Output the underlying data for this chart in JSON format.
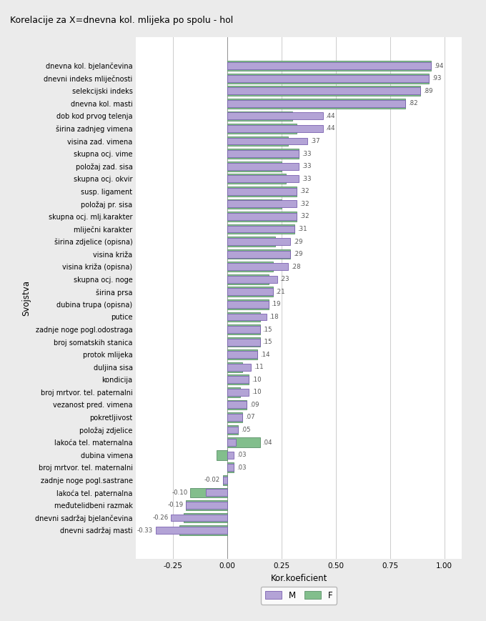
{
  "title": "Korelacije za X=dnevna kol. mlijeka po spolu - hol",
  "xlabel": "Kor.koeficient",
  "ylabel": "Svojstva",
  "categories": [
    "dnevna kol. bjelančevina",
    "dnevni indeks mliječnosti",
    "selekcijski indeks",
    "dnevna kol. masti",
    "dob kod prvog telenja",
    "širina zadnjeg vimena",
    "visina zad. vimena",
    "skupna ocj. vime",
    "položaj zad. sisa",
    "skupna ocj. okvir",
    "susp. ligament",
    "položaj pr. sisa",
    "skupna ocj. mlj.karakter",
    "mliječni karakter",
    "širina zdjelice (opisna)",
    "visina križa",
    "visina križa (opisna)",
    "skupna ocj. noge",
    "širina prsa",
    "dubina trupa (opisna)",
    "putice",
    "zadnje noge pogl.odostraga",
    "broj somatskih stanica",
    "protok mlijeka",
    "duljina sisa",
    "kondicija",
    "broj mrtvor. tel. paternalni",
    "vezanost pred. vimena",
    "pokretljivost",
    "položaj zdjelice",
    "lakoća tel. maternalna",
    "dubina vimena",
    "broj mrtvor. tel. maternalni",
    "zadnje noge pogl.sastrane",
    "lakoća tel. paternalna",
    "međutelidbeni razmak",
    "dnevni sadržaj bjelančevina",
    "dnevni sadržaj masti"
  ],
  "F_values": [
    0.94,
    0.93,
    0.89,
    0.82,
    0.3,
    0.32,
    0.28,
    0.33,
    0.25,
    0.27,
    0.32,
    0.25,
    0.32,
    0.31,
    0.22,
    0.29,
    0.21,
    0.19,
    0.21,
    0.19,
    0.15,
    0.15,
    0.15,
    0.14,
    0.07,
    0.1,
    0.06,
    0.09,
    0.07,
    0.05,
    0.15,
    -0.05,
    0.03,
    -0.02,
    -0.17,
    -0.19,
    -0.2,
    -0.22
  ],
  "M_values": [
    0.94,
    0.93,
    0.89,
    0.82,
    0.44,
    0.44,
    0.37,
    0.33,
    0.33,
    0.33,
    0.32,
    0.32,
    0.32,
    0.31,
    0.29,
    0.29,
    0.28,
    0.23,
    0.21,
    0.19,
    0.18,
    0.15,
    0.15,
    0.14,
    0.11,
    0.1,
    0.1,
    0.09,
    0.07,
    0.05,
    0.04,
    0.03,
    0.03,
    -0.02,
    -0.1,
    -0.19,
    -0.26,
    -0.33
  ],
  "label_values": [
    0.94,
    0.93,
    0.89,
    0.82,
    0.44,
    0.44,
    0.37,
    0.33,
    0.33,
    0.33,
    0.32,
    0.32,
    0.32,
    0.31,
    0.29,
    0.29,
    0.28,
    0.23,
    0.21,
    0.19,
    0.18,
    0.15,
    0.15,
    0.14,
    0.11,
    0.1,
    0.1,
    0.09,
    0.07,
    0.05,
    0.04,
    0.03,
    0.03,
    -0.02,
    -0.1,
    -0.19,
    -0.26,
    -0.33
  ],
  "F_color": "#82be8c",
  "M_color": "#b3a3d6",
  "F_edge_color": "#5a9068",
  "M_edge_color": "#7a60b0",
  "background_color": "#ebebeb",
  "plot_bg_color": "#ffffff",
  "grid_color": "#cccccc",
  "xlim": [
    -0.42,
    1.08
  ],
  "xticks": [
    -0.25,
    0.0,
    0.25,
    0.5,
    0.75,
    1.0
  ],
  "xtick_labels": [
    "-0.25",
    "0.00",
    "0.25",
    "0.50",
    "0.75",
    "1.00"
  ],
  "bar_height": 0.78,
  "title_fontsize": 9,
  "label_fontsize": 7,
  "tick_fontsize": 7.5,
  "axis_label_fontsize": 8.5,
  "value_fontsize": 6.2
}
